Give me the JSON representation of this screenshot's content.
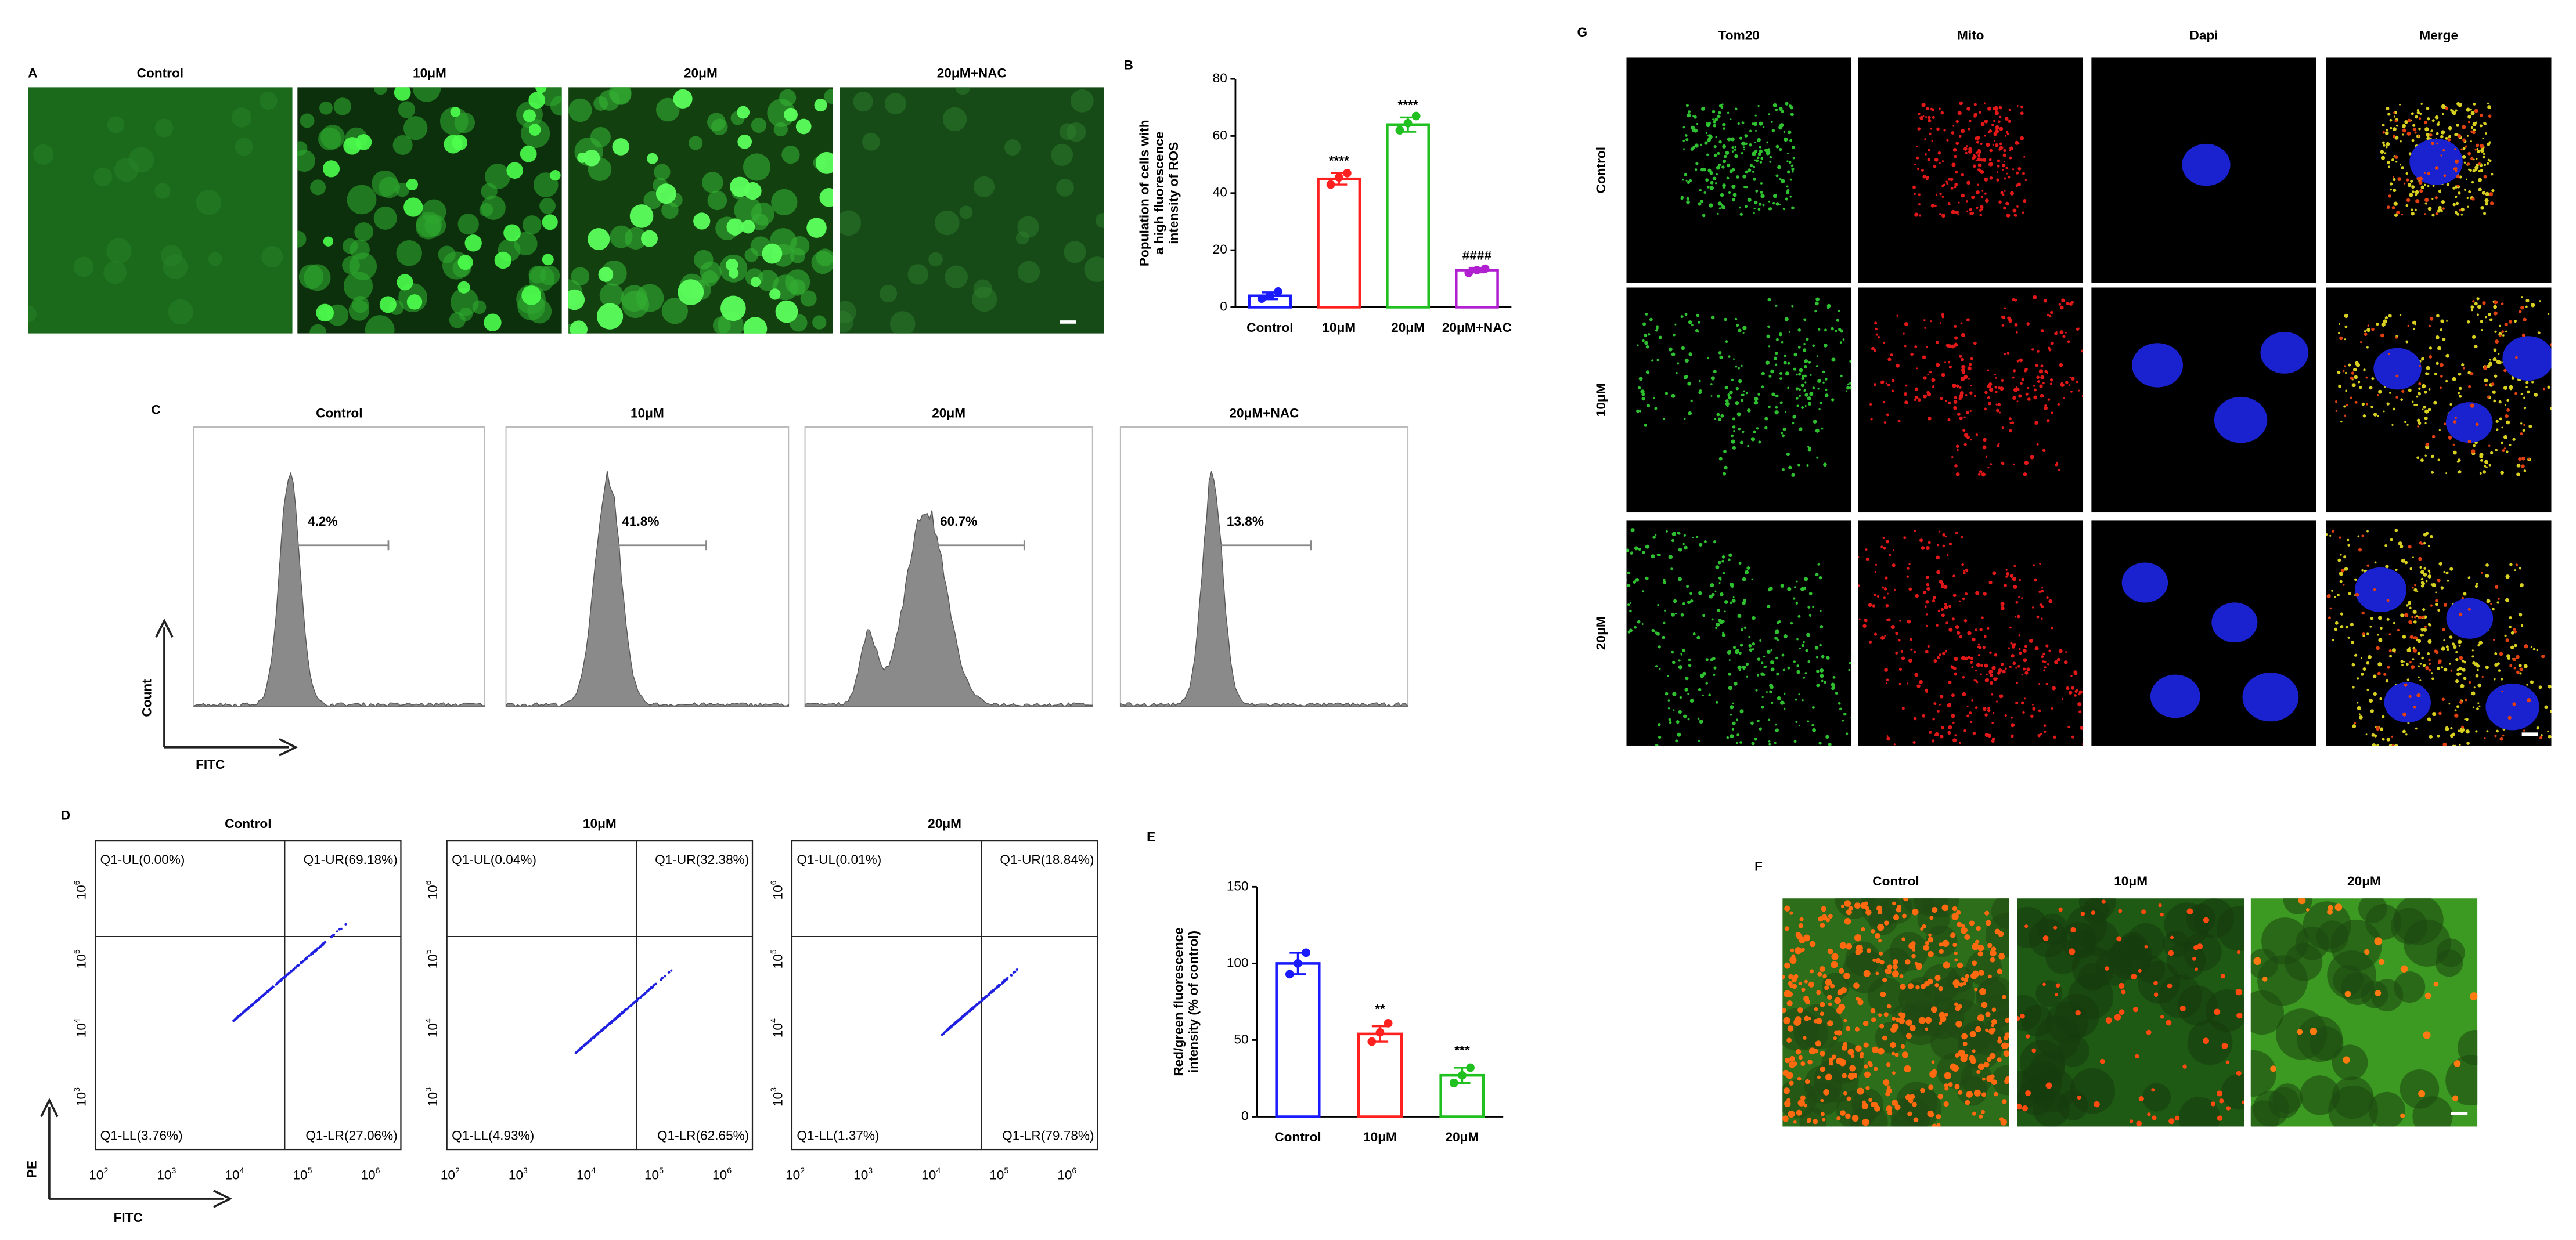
{
  "chart_data": [
    {
      "type": "bar",
      "label": "B",
      "ylabel": [
        "Population of cells with",
        "a high fluorescence",
        "intensity of ROS"
      ],
      "categories": [
        "Control",
        "10μM",
        "20μM",
        "20μM+NAC"
      ],
      "values": [
        4,
        45,
        64,
        13
      ],
      "errors": [
        1.2,
        2,
        2.5,
        0.8
      ],
      "points": [
        [
          3,
          4,
          5.5
        ],
        [
          43,
          45.5,
          47
        ],
        [
          62,
          64.5,
          67
        ],
        [
          12,
          13,
          13.5
        ]
      ],
      "colors": [
        "#1a1aff",
        "#ff2020",
        "#20c020",
        "#b020d0"
      ],
      "annotations": [
        null,
        "****",
        "****",
        "####"
      ],
      "ylim": [
        0,
        80
      ],
      "yticks": [
        0,
        20,
        40,
        60,
        80
      ]
    },
    {
      "type": "bar",
      "label": "E",
      "ylabel": [
        "Red/green fluorescence",
        "intensity (% of control)"
      ],
      "categories": [
        "Control",
        "10μM",
        "20μM"
      ],
      "values": [
        100,
        54,
        27
      ],
      "errors": [
        7,
        5,
        5
      ],
      "points": [
        [
          93,
          100,
          107
        ],
        [
          49,
          55,
          61
        ],
        [
          22,
          27,
          32
        ]
      ],
      "colors": [
        "#1a1aff",
        "#ff2020",
        "#20c020"
      ],
      "annotations": [
        null,
        "**",
        "***"
      ],
      "ylim": [
        0,
        150
      ],
      "yticks": [
        0,
        50,
        100,
        150
      ]
    }
  ],
  "panel_a": {
    "label": "A",
    "titles": [
      "Control",
      "10μM",
      "20μM",
      "20μM+NAC"
    ]
  },
  "panel_c": {
    "label": "C",
    "titles": [
      "Control",
      "10μM",
      "20μM",
      "20μM+NAC"
    ],
    "percentages": [
      "4.2%",
      "41.8%",
      "60.7%",
      "13.8%"
    ],
    "ylabel": "Count",
    "xlabel": "FITC"
  },
  "panel_d": {
    "label": "D",
    "titles": [
      "Control",
      "10μM",
      "20μM"
    ],
    "quadrants": [
      [
        "Q1-UL(0.00%)",
        "Q1-UR(69.18%)",
        "Q1-LL(3.76%)",
        "Q1-LR(27.06%)"
      ],
      [
        "Q1-UL(0.04%)",
        "Q1-UR(32.38%)",
        "Q1-LL(4.93%)",
        "Q1-LR(62.65%)"
      ],
      [
        "Q1-UL(0.01%)",
        "Q1-UR(18.84%)",
        "Q1-LL(1.37%)",
        "Q1-LR(79.78%)"
      ]
    ],
    "tick_base": "10",
    "xtick_exponents": [
      2,
      3,
      4,
      5,
      6
    ],
    "ytick_exponents": [
      3,
      4,
      5,
      6
    ],
    "ylabel": "PE",
    "xlabel": "FITC"
  },
  "panel_g": {
    "label": "G",
    "columns": [
      "Tom20",
      "Mito",
      "Dapi",
      "Merge"
    ],
    "rows": [
      "Control",
      "10μM",
      "20μM"
    ]
  },
  "panel_f": {
    "label": "F",
    "titles": [
      "Control",
      "10μM",
      "20μM"
    ]
  }
}
